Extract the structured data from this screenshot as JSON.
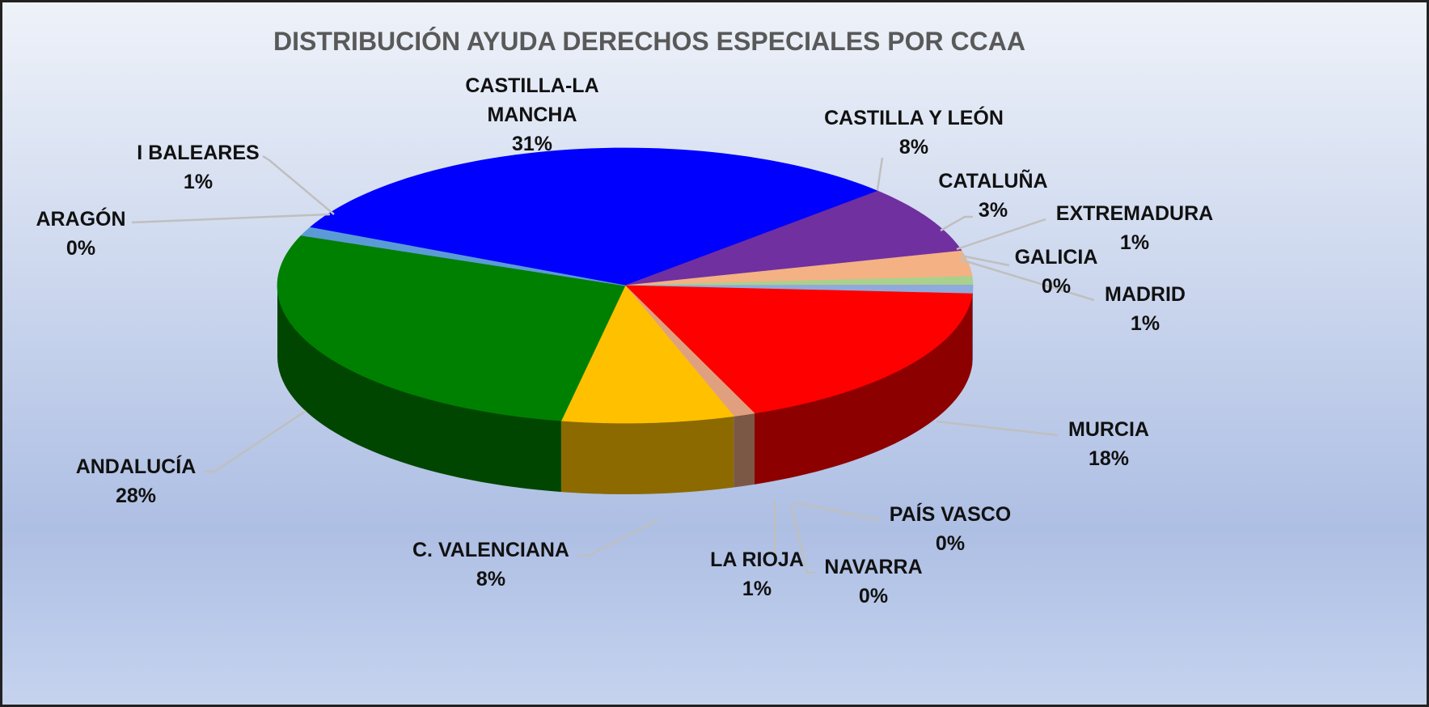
{
  "chart_data": {
    "type": "pie",
    "title": "DISTRIBUCIÓN AYUDA DERECHOS ESPECIALES POR CCAA",
    "categories": [
      "CASTILLA-LA MANCHA",
      "CASTILLA Y LEÓN",
      "CATALUÑA",
      "EXTREMADURA",
      "GALICIA",
      "MADRID",
      "MURCIA",
      "PAÍS VASCO",
      "NAVARRA",
      "LA RIOJA",
      "C. VALENCIANA",
      "ANDALUCÍA",
      "ARAGÓN",
      "I BALEARES"
    ],
    "values": [
      31,
      8,
      3,
      1,
      0,
      1,
      18,
      0,
      0,
      1,
      8,
      28,
      0,
      1
    ],
    "value_labels": [
      "31%",
      "8%",
      "3%",
      "1%",
      "0%",
      "1%",
      "18%",
      "0%",
      "0%",
      "1%",
      "8%",
      "28%",
      "0%",
      "1%"
    ],
    "colors": [
      "#0000ff",
      "#7030a0",
      "#f4b183",
      "#a9d18e",
      "#ff66cc",
      "#8faadc",
      "#ff0000",
      "#c55a11",
      "#bf9000",
      "#e0a080",
      "#ffc000",
      "#008000",
      "#4472c4",
      "#5b9bd5"
    ]
  }
}
